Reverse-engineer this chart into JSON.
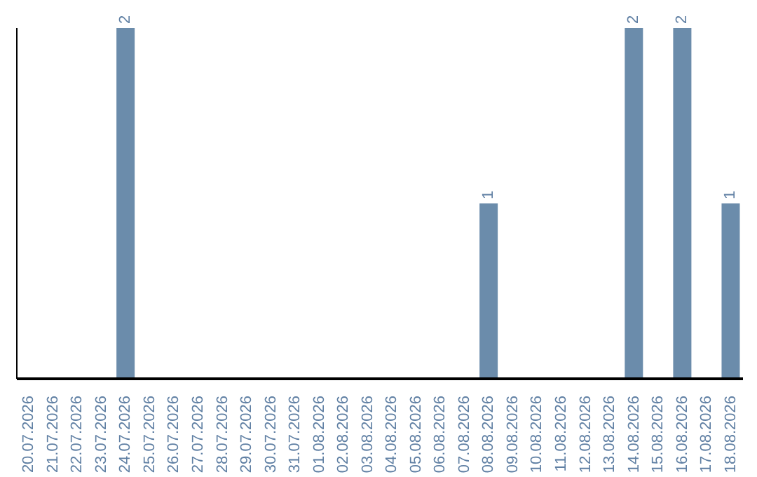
{
  "chart_data": {
    "type": "bar",
    "categories": [
      "20.07.2026",
      "21.07.2026",
      "22.07.2026",
      "23.07.2026",
      "24.07.2026",
      "25.07.2026",
      "26.07.2026",
      "27.07.2026",
      "28.07.2026",
      "29.07.2026",
      "30.07.2026",
      "31.07.2026",
      "01.08.2026",
      "02.08.2026",
      "03.08.2026",
      "04.08.2026",
      "05.08.2026",
      "06.08.2026",
      "07.08.2026",
      "08.08.2026",
      "09.08.2026",
      "10.08.2026",
      "11.08.2026",
      "12.08.2026",
      "13.08.2026",
      "14.08.2026",
      "15.08.2026",
      "16.08.2026",
      "17.08.2026",
      "18.08.2026"
    ],
    "values": [
      0,
      0,
      0,
      0,
      2,
      0,
      0,
      0,
      0,
      0,
      0,
      0,
      0,
      0,
      0,
      0,
      0,
      0,
      0,
      1,
      0,
      0,
      0,
      0,
      0,
      2,
      0,
      2,
      0,
      1
    ],
    "value_labels": [
      null,
      null,
      null,
      null,
      "2",
      null,
      null,
      null,
      null,
      null,
      null,
      null,
      null,
      null,
      null,
      null,
      null,
      null,
      null,
      "1",
      null,
      null,
      null,
      null,
      null,
      "2",
      null,
      "2",
      null,
      "1"
    ],
    "color": "#6b8cab",
    "grid": false,
    "legend": false
  }
}
